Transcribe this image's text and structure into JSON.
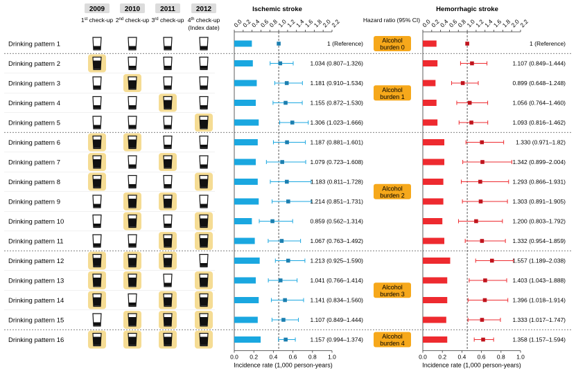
{
  "header": {
    "years": [
      "2009",
      "2010",
      "2011",
      "2012"
    ],
    "checkups": [
      "1st check-up",
      "2nd check-up",
      "3rd check-up",
      "4th check-up"
    ],
    "index_note": "(Index date)",
    "hr_label": "Hazard ratio (95% CI)"
  },
  "rows": [
    {
      "label": "Drinking pattern 1",
      "pattern": [
        0,
        0,
        0,
        0
      ]
    },
    {
      "label": "Drinking pattern 2",
      "pattern": [
        1,
        0,
        0,
        0
      ]
    },
    {
      "label": "Drinking pattern 3",
      "pattern": [
        0,
        1,
        0,
        0
      ]
    },
    {
      "label": "Drinking pattern 4",
      "pattern": [
        0,
        0,
        1,
        0
      ]
    },
    {
      "label": "Drinking pattern 5",
      "pattern": [
        0,
        0,
        0,
        1
      ]
    },
    {
      "label": "Drinking pattern 6",
      "pattern": [
        1,
        1,
        0,
        0
      ]
    },
    {
      "label": "Drinking pattern 7",
      "pattern": [
        1,
        0,
        1,
        0
      ]
    },
    {
      "label": "Drinking pattern 8",
      "pattern": [
        1,
        0,
        0,
        1
      ]
    },
    {
      "label": "Drinking pattern 9",
      "pattern": [
        0,
        1,
        1,
        0
      ]
    },
    {
      "label": "Drinking pattern 10",
      "pattern": [
        0,
        1,
        0,
        1
      ]
    },
    {
      "label": "Drinking pattern 11",
      "pattern": [
        0,
        0,
        1,
        1
      ]
    },
    {
      "label": "Drinking pattern 12",
      "pattern": [
        1,
        1,
        1,
        0
      ]
    },
    {
      "label": "Drinking pattern 13",
      "pattern": [
        1,
        1,
        0,
        1
      ]
    },
    {
      "label": "Drinking pattern 14",
      "pattern": [
        1,
        0,
        1,
        1
      ]
    },
    {
      "label": "Drinking pattern 15",
      "pattern": [
        0,
        1,
        1,
        1
      ]
    },
    {
      "label": "Drinking pattern 16",
      "pattern": [
        1,
        1,
        1,
        1
      ]
    }
  ],
  "burdens": [
    {
      "label": "Alcohol burden 0",
      "rows": [
        0,
        0
      ]
    },
    {
      "label": "Alcohol burden 1",
      "rows": [
        1,
        4
      ]
    },
    {
      "label": "Alcohol burden 2",
      "rows": [
        5,
        10
      ]
    },
    {
      "label": "Alcohol burden 3",
      "rows": [
        11,
        14
      ]
    },
    {
      "label": "Alcohol burden 4",
      "rows": [
        15,
        15
      ]
    }
  ],
  "chart_data": [
    {
      "type": "forest",
      "title": "Ischemic stroke",
      "color": "#1aa7e0",
      "hr_axis": {
        "ticks": [
          0,
          0.2,
          0.4,
          0.6,
          0.8,
          1.0,
          1.2,
          1.4,
          1.6,
          1.8,
          2.0,
          2.2
        ],
        "range": [
          0,
          2.2
        ],
        "reference_line": 1.0
      },
      "incidence_axis": {
        "label": "Incidence rate (1,000 person-years)",
        "ticks": [
          0,
          0.2,
          0.4,
          0.6,
          0.8,
          1.0
        ],
        "range": [
          0,
          1.0
        ]
      },
      "hr": [
        1.0,
        1.034,
        1.181,
        1.155,
        1.306,
        1.187,
        1.079,
        1.183,
        1.214,
        0.859,
        1.067,
        1.213,
        1.041,
        1.141,
        1.107,
        1.157
      ],
      "ci": [
        [
          1.0,
          1.0
        ],
        [
          0.807,
          1.326
        ],
        [
          0.91,
          1.534
        ],
        [
          0.872,
          1.53
        ],
        [
          1.023,
          1.666
        ],
        [
          0.881,
          1.601
        ],
        [
          0.723,
          1.608
        ],
        [
          0.811,
          1.728
        ],
        [
          0.851,
          1.731
        ],
        [
          0.562,
          1.314
        ],
        [
          0.763,
          1.492
        ],
        [
          0.925,
          1.59
        ],
        [
          0.766,
          1.414
        ],
        [
          0.834,
          1.56
        ],
        [
          0.849,
          1.444
        ],
        [
          0.994,
          1.374
        ]
      ],
      "hr_text": [
        "1 (Reference)",
        "1.034 (0.807–1.326)",
        "1.181 (0.910–1.534)",
        "1.155 (0.872–1.530)",
        "1.306 (1.023–1.666)",
        "1.187 (0.881–1.601)",
        "1.079 (0.723–1.608)",
        "1.183 (0.811–1.728)",
        "1.214 (0.851–1.731)",
        "0.859 (0.562–1.314)",
        "1.067 (0.763–1.492)",
        "1.213 (0.925–1.590)",
        "1.041 (0.766–1.414)",
        "1.141 (0.834–1.560)",
        "1.107 (0.849–1.444)",
        "1.157 (0.994–1.374)"
      ],
      "incidence": [
        0.18,
        0.19,
        0.23,
        0.22,
        0.25,
        0.24,
        0.22,
        0.24,
        0.25,
        0.18,
        0.21,
        0.26,
        0.22,
        0.25,
        0.24,
        0.27
      ]
    },
    {
      "type": "forest",
      "title": "Hemorrhagic stroke",
      "color": "#ee2a2f",
      "hr_axis": {
        "ticks": [
          0,
          0.2,
          0.4,
          0.6,
          0.8,
          1.0,
          1.2,
          1.4,
          1.6,
          1.8,
          2.0,
          2.2
        ],
        "range": [
          0,
          2.2
        ],
        "reference_line": 1.0
      },
      "incidence_axis": {
        "label": "Incidence rate (1,000 person-years)",
        "ticks": [
          0,
          0.2,
          0.4,
          0.6,
          0.8,
          1.0
        ],
        "range": [
          0,
          1.0
        ]
      },
      "hr": [
        1.0,
        1.107,
        0.899,
        1.056,
        1.093,
        1.33,
        1.342,
        1.293,
        1.303,
        1.2,
        1.332,
        1.557,
        1.403,
        1.396,
        1.333,
        1.358
      ],
      "ci": [
        [
          1.0,
          1.0
        ],
        [
          0.849,
          1.444
        ],
        [
          0.648,
          1.248
        ],
        [
          0.764,
          1.46
        ],
        [
          0.816,
          1.462
        ],
        [
          0.971,
          1.82
        ],
        [
          0.899,
          2.004
        ],
        [
          0.866,
          1.931
        ],
        [
          0.891,
          1.905
        ],
        [
          0.803,
          1.792
        ],
        [
          0.954,
          1.859
        ],
        [
          1.189,
          2.038
        ],
        [
          1.043,
          1.888
        ],
        [
          1.018,
          1.914
        ],
        [
          1.017,
          1.747
        ],
        [
          1.157,
          1.594
        ]
      ],
      "hr_text": [
        "1 (Reference)",
        "1.107 (0.849–1.444)",
        "0.899 (0.648–1.248)",
        "1.056 (0.764–1.460)",
        "1.093 (0.816–1.462)",
        "1.330 (0.971–1.82)",
        "1.342 (0.899–2.004)",
        "1.293 (0.866–1.931)",
        "1.303 (0.891–1.905)",
        "1.200 (0.803–1.792)",
        "1.332 (0.954–1.859)",
        "1.557 (1.189–2.038)",
        "1.403 (1.043–1.888)",
        "1.396 (1.018–1.914)",
        "1.333 (1.017–1.747)",
        "1.358 (1.157–1.594)"
      ],
      "incidence": [
        0.14,
        0.15,
        0.13,
        0.14,
        0.15,
        0.22,
        0.22,
        0.21,
        0.21,
        0.2,
        0.22,
        0.28,
        0.25,
        0.25,
        0.24,
        0.25
      ]
    }
  ]
}
